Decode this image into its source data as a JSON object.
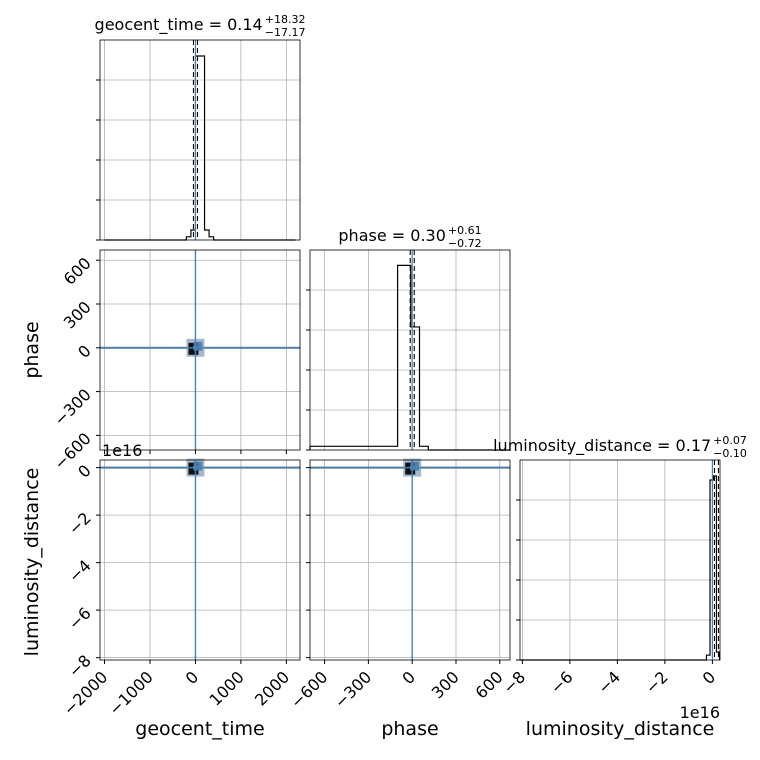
{
  "chart_data": {
    "type": "corner",
    "parameters": [
      "geocent_time",
      "phase",
      "luminosity_distance"
    ],
    "titles": [
      {
        "text": "geocent_time = 0.14",
        "sup": "+18.32",
        "sub": "−17.17"
      },
      {
        "text": "phase = 0.30",
        "sup": "+0.61",
        "sub": "−0.72"
      },
      {
        "text": "luminosity_distance = 0.17",
        "sup": "+0.07",
        "sub": "−0.10"
      }
    ],
    "axis_labels": {
      "bottom": [
        "geocent_time",
        "phase",
        "luminosity_distance"
      ],
      "left": [
        "phase",
        "luminosity_distance"
      ]
    },
    "offset_texts": {
      "y_luminosity_distance": "1e16",
      "x_luminosity_distance": "1e16"
    },
    "ranges": {
      "geocent_time": [
        -2100,
        2300
      ],
      "phase": [
        -700,
        670
      ],
      "luminosity_distance": [
        -8.1,
        0.32
      ]
    },
    "ticks": {
      "geocent_time": {
        "values": [
          -2000,
          -1000,
          0,
          1000,
          2000
        ],
        "labels": [
          "−2000",
          "−1000",
          "0",
          "1000",
          "2000"
        ]
      },
      "phase": {
        "values": [
          -600,
          -300,
          0,
          300,
          600
        ],
        "labels": [
          "−600",
          "−300",
          "0",
          "300",
          "600"
        ]
      },
      "luminosity_distance": {
        "values": [
          -8,
          -6,
          -4,
          -2,
          0
        ],
        "labels": [
          "−8",
          "−6",
          "−4",
          "−2",
          "0"
        ]
      }
    },
    "histograms": {
      "geocent_time": {
        "edges": [
          -2000,
          -1800,
          -1600,
          -1400,
          -1200,
          -1000,
          -800,
          -600,
          -400,
          -200,
          -100,
          0,
          100,
          200,
          300,
          400,
          600,
          800,
          1000,
          1200,
          1400,
          1600,
          1800,
          2000,
          2200
        ],
        "counts": [
          0,
          0,
          0,
          0,
          0,
          0,
          0,
          0,
          0,
          0.008,
          0.025,
          0.46,
          0.46,
          0.025,
          0.008,
          0,
          0,
          0,
          0,
          0,
          0,
          0,
          0,
          0
        ],
        "ymax": 0.5
      },
      "phase": {
        "edges": [
          -700,
          -100,
          -10,
          50,
          110,
          670
        ],
        "counts": [
          0.012,
          0.6,
          0.4,
          0.012,
          0
        ],
        "ymax": 0.65
      },
      "luminosity_distance": {
        "edges": [
          -8.1,
          -0.25,
          -0.1,
          0.05,
          0.17,
          0.3,
          0.32
        ],
        "counts": [
          0,
          0.012,
          0.45,
          0.46,
          0.02,
          0
        ],
        "ymax": 0.5
      }
    },
    "medians": {
      "geocent_time": 0.14,
      "phase": 0.3,
      "luminosity_distance": 0.17
    },
    "truths": {
      "geocent_time": 0,
      "phase": 0,
      "luminosity_distance": 0
    },
    "truth_color": "#4682b4",
    "hist_color": "#000000",
    "grid": true
  }
}
